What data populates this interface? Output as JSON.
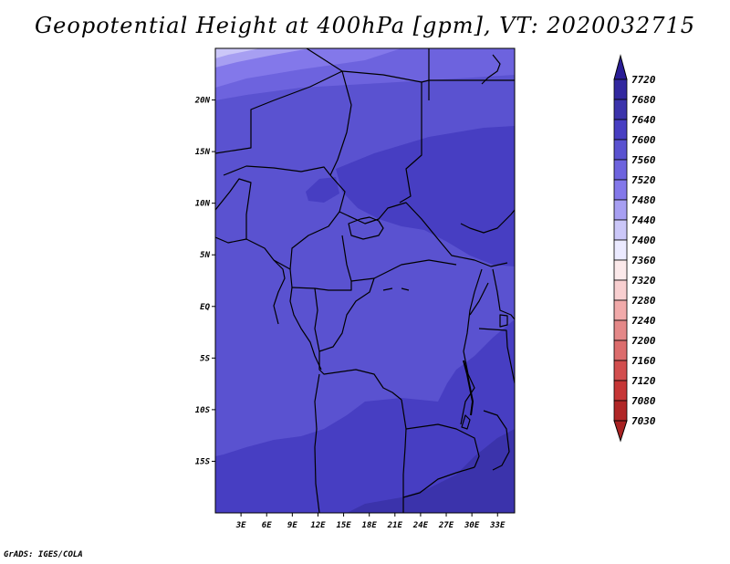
{
  "title": "Geopotential Height at 400hPa [gpm], VT: 2020032715",
  "credit": "GrADS: IGES/COLA",
  "map": {
    "lon_range": [
      0,
      35
    ],
    "lat_range": [
      -20,
      25
    ],
    "lat_ticks": [
      {
        "value": 20,
        "label": "20N"
      },
      {
        "value": 15,
        "label": "15N"
      },
      {
        "value": 10,
        "label": "10N"
      },
      {
        "value": 5,
        "label": "5N"
      },
      {
        "value": 0,
        "label": "EQ"
      },
      {
        "value": -5,
        "label": "5S"
      },
      {
        "value": -10,
        "label": "10S"
      },
      {
        "value": -15,
        "label": "15S"
      }
    ],
    "lon_ticks": [
      {
        "value": 3,
        "label": "3E"
      },
      {
        "value": 6,
        "label": "6E"
      },
      {
        "value": 9,
        "label": "9E"
      },
      {
        "value": 12,
        "label": "12E"
      },
      {
        "value": 15,
        "label": "15E"
      },
      {
        "value": 18,
        "label": "18E"
      },
      {
        "value": 21,
        "label": "21E"
      },
      {
        "value": 24,
        "label": "24E"
      },
      {
        "value": 27,
        "label": "27E"
      },
      {
        "value": 30,
        "label": "30E"
      },
      {
        "value": 33,
        "label": "33E"
      }
    ]
  },
  "colorbar": {
    "levels": [
      {
        "label": "7720",
        "color": "#2a1d96"
      },
      {
        "label": "7680",
        "color": "#32289f"
      },
      {
        "label": "7640",
        "color": "#3b33ab"
      },
      {
        "label": "7600",
        "color": "#473ec2"
      },
      {
        "label": "7560",
        "color": "#5a52d0"
      },
      {
        "label": "7520",
        "color": "#6d63de"
      },
      {
        "label": "7480",
        "color": "#8378ea"
      },
      {
        "label": "7440",
        "color": "#a79ff2"
      },
      {
        "label": "7400",
        "color": "#cbc7f8"
      },
      {
        "label": "7360",
        "color": "#ebeaff"
      },
      {
        "label": "7320",
        "color": "#fbe9ea"
      },
      {
        "label": "7280",
        "color": "#f8cfd0"
      },
      {
        "label": "7240",
        "color": "#f1aaaa"
      },
      {
        "label": "7200",
        "color": "#e48888"
      },
      {
        "label": "7160",
        "color": "#dc6c6c"
      },
      {
        "label": "7120",
        "color": "#d24e4e"
      },
      {
        "label": "7080",
        "color": "#c63636"
      },
      {
        "label": "7030",
        "color": "#b02626"
      }
    ],
    "top_cap_color": "#2a1d96",
    "bottom_cap_color": "#a82222"
  }
}
